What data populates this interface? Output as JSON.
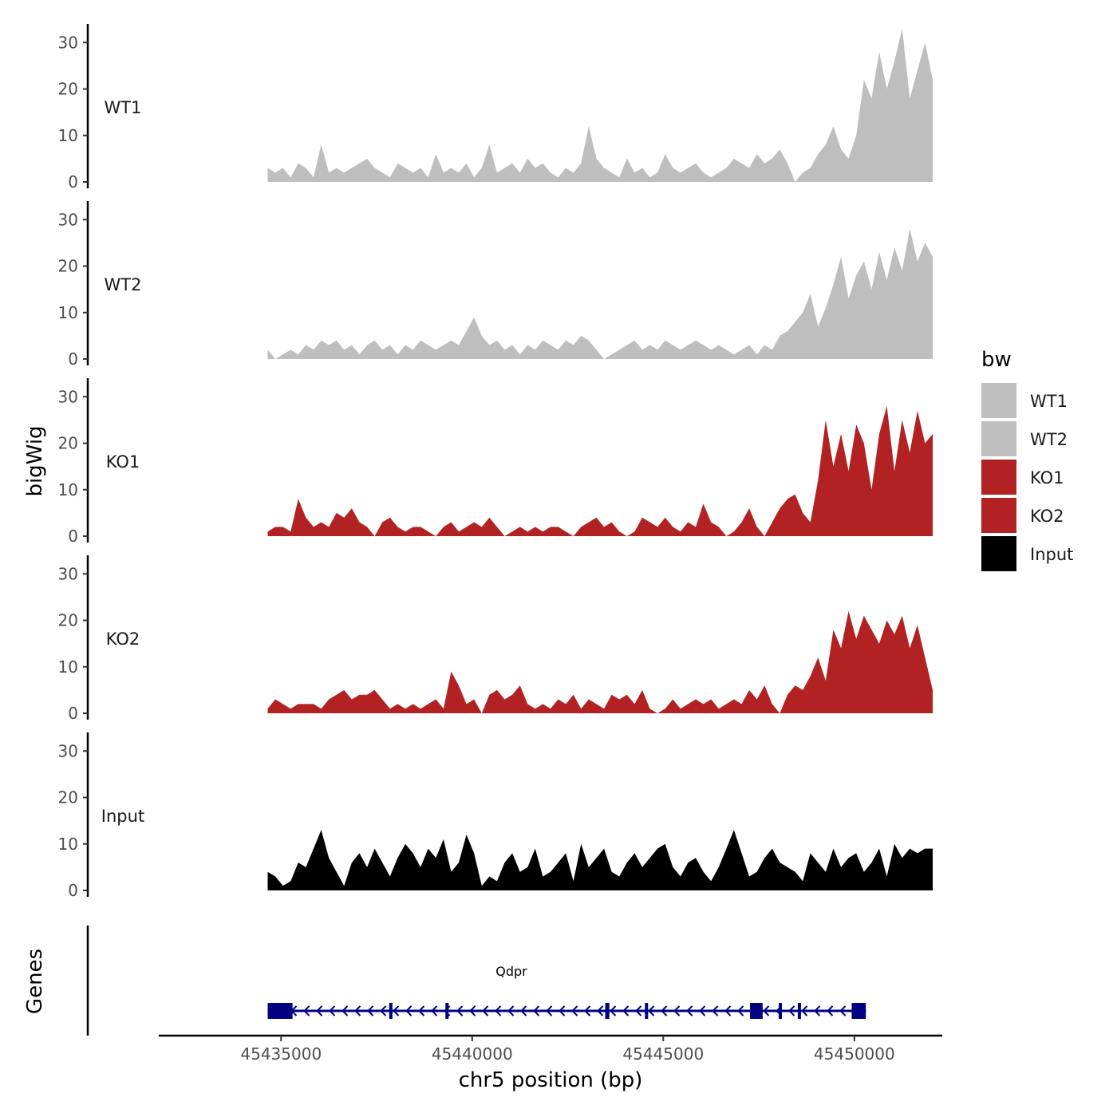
{
  "chart_data": {
    "type": "area",
    "ylabel": "bigWig",
    "xlabel": "chr5 position (bp)",
    "genes_label": "Genes",
    "xlim": [
      45431800,
      45452300
    ],
    "ylim": [
      0,
      34
    ],
    "y_ticks": [
      {
        "value": 0,
        "label": "0"
      },
      {
        "value": 10,
        "label": "10"
      },
      {
        "value": 20,
        "label": "20"
      },
      {
        "value": 30,
        "label": "30"
      }
    ],
    "x_ticks": [
      {
        "value": 45435000,
        "label": "45435000"
      },
      {
        "value": 45440000,
        "label": "45440000"
      },
      {
        "value": 45445000,
        "label": "45445000"
      },
      {
        "value": 45450000,
        "label": "45450000"
      }
    ],
    "series": [
      {
        "name": "WT1",
        "color": "#bebebe",
        "x": [
          45434650,
          45434850,
          45435050,
          45435250,
          45435450,
          45435650,
          45435850,
          45436050,
          45436250,
          45436450,
          45436650,
          45436850,
          45437050,
          45437250,
          45437450,
          45437650,
          45437850,
          45438050,
          45438250,
          45438450,
          45438650,
          45438850,
          45439050,
          45439250,
          45439450,
          45439650,
          45439850,
          45440050,
          45440250,
          45440450,
          45440650,
          45440850,
          45441050,
          45441250,
          45441450,
          45441650,
          45441850,
          45442050,
          45442250,
          45442450,
          45442650,
          45442850,
          45443050,
          45443250,
          45443450,
          45443650,
          45443850,
          45444050,
          45444250,
          45444450,
          45444650,
          45444850,
          45445050,
          45445250,
          45445450,
          45445650,
          45445850,
          45446050,
          45446250,
          45446450,
          45446650,
          45446850,
          45447050,
          45447250,
          45447450,
          45447650,
          45447850,
          45448050,
          45448250,
          45448450,
          45448650,
          45448850,
          45449050,
          45449250,
          45449450,
          45449650,
          45449850,
          45450050,
          45450250,
          45450450,
          45450650,
          45450850,
          45451050,
          45451250,
          45451450,
          45451650,
          45451850,
          45452050
        ],
        "values": [
          3,
          2,
          3,
          1,
          4,
          3,
          1,
          8,
          2,
          3,
          2,
          3,
          4,
          5,
          3,
          2,
          1,
          4,
          3,
          2,
          3,
          1,
          6,
          2,
          3,
          2,
          4,
          1,
          3,
          8,
          2,
          3,
          4,
          2,
          5,
          3,
          4,
          2,
          1,
          3,
          2,
          4,
          12,
          5,
          3,
          2,
          1,
          5,
          2,
          3,
          1,
          2,
          6,
          3,
          2,
          3,
          4,
          2,
          1,
          2,
          3,
          5,
          4,
          3,
          6,
          4,
          5,
          7,
          4,
          0,
          2,
          3,
          6,
          8,
          12,
          7,
          5,
          10,
          22,
          18,
          28,
          20,
          26,
          33,
          18,
          24,
          30,
          22
        ]
      },
      {
        "name": "WT2",
        "color": "#bebebe",
        "x": [
          45434650,
          45434850,
          45435050,
          45435250,
          45435450,
          45435650,
          45435850,
          45436050,
          45436250,
          45436450,
          45436650,
          45436850,
          45437050,
          45437250,
          45437450,
          45437650,
          45437850,
          45438050,
          45438250,
          45438450,
          45438650,
          45438850,
          45439050,
          45439250,
          45439450,
          45439650,
          45439850,
          45440050,
          45440250,
          45440450,
          45440650,
          45440850,
          45441050,
          45441250,
          45441450,
          45441650,
          45441850,
          45442050,
          45442250,
          45442450,
          45442650,
          45442850,
          45443050,
          45443250,
          45443450,
          45443650,
          45443850,
          45444050,
          45444250,
          45444450,
          45444650,
          45444850,
          45445050,
          45445250,
          45445450,
          45445650,
          45445850,
          45446050,
          45446250,
          45446450,
          45446650,
          45446850,
          45447050,
          45447250,
          45447450,
          45447650,
          45447850,
          45448050,
          45448250,
          45448450,
          45448650,
          45448850,
          45449050,
          45449250,
          45449450,
          45449650,
          45449850,
          45450050,
          45450250,
          45450450,
          45450650,
          45450850,
          45451050,
          45451250,
          45451450,
          45451650,
          45451850,
          45452050
        ],
        "values": [
          2,
          0,
          1,
          2,
          1,
          3,
          2,
          4,
          3,
          4,
          2,
          3,
          1,
          3,
          4,
          2,
          3,
          1,
          3,
          2,
          4,
          3,
          2,
          3,
          4,
          3,
          6,
          9,
          5,
          3,
          4,
          2,
          3,
          1,
          3,
          2,
          4,
          3,
          2,
          4,
          3,
          5,
          4,
          2,
          0,
          1,
          2,
          3,
          4,
          2,
          3,
          2,
          4,
          3,
          2,
          3,
          4,
          3,
          2,
          3,
          2,
          1,
          2,
          3,
          1,
          3,
          2,
          5,
          6,
          8,
          10,
          14,
          7,
          11,
          16,
          22,
          13,
          18,
          21,
          15,
          23,
          17,
          24,
          19,
          28,
          21,
          25,
          22
        ]
      },
      {
        "name": "KO1",
        "color": "#b22222",
        "x": [
          45434650,
          45434850,
          45435050,
          45435250,
          45435450,
          45435650,
          45435850,
          45436050,
          45436250,
          45436450,
          45436650,
          45436850,
          45437050,
          45437250,
          45437450,
          45437650,
          45437850,
          45438050,
          45438250,
          45438450,
          45438650,
          45438850,
          45439050,
          45439250,
          45439450,
          45439650,
          45439850,
          45440050,
          45440250,
          45440450,
          45440650,
          45440850,
          45441050,
          45441250,
          45441450,
          45441650,
          45441850,
          45442050,
          45442250,
          45442450,
          45442650,
          45442850,
          45443050,
          45443250,
          45443450,
          45443650,
          45443850,
          45444050,
          45444250,
          45444450,
          45444650,
          45444850,
          45445050,
          45445250,
          45445450,
          45445650,
          45445850,
          45446050,
          45446250,
          45446450,
          45446650,
          45446850,
          45447050,
          45447250,
          45447450,
          45447650,
          45447850,
          45448050,
          45448250,
          45448450,
          45448650,
          45448850,
          45449050,
          45449250,
          45449450,
          45449650,
          45449850,
          45450050,
          45450250,
          45450450,
          45450650,
          45450850,
          45451050,
          45451250,
          45451450,
          45451650,
          45451850,
          45452050
        ],
        "values": [
          1,
          2,
          2,
          1,
          8,
          4,
          2,
          3,
          2,
          5,
          4,
          6,
          3,
          2,
          0,
          3,
          4,
          2,
          1,
          2,
          2,
          1,
          0,
          2,
          3,
          1,
          2,
          3,
          2,
          4,
          2,
          0,
          1,
          2,
          1,
          2,
          1,
          2,
          2,
          1,
          0,
          2,
          3,
          4,
          2,
          3,
          1,
          0,
          1,
          4,
          3,
          2,
          4,
          2,
          1,
          3,
          2,
          7,
          3,
          2,
          0,
          1,
          3,
          6,
          2,
          0,
          3,
          6,
          8,
          9,
          5,
          3,
          12,
          25,
          15,
          22,
          14,
          24,
          20,
          10,
          22,
          28,
          14,
          25,
          18,
          27,
          20,
          22
        ]
      },
      {
        "name": "KO2",
        "color": "#b22222",
        "x": [
          45434650,
          45434850,
          45435050,
          45435250,
          45435450,
          45435650,
          45435850,
          45436050,
          45436250,
          45436450,
          45436650,
          45436850,
          45437050,
          45437250,
          45437450,
          45437650,
          45437850,
          45438050,
          45438250,
          45438450,
          45438650,
          45438850,
          45439050,
          45439250,
          45439450,
          45439650,
          45439850,
          45440050,
          45440250,
          45440450,
          45440650,
          45440850,
          45441050,
          45441250,
          45441450,
          45441650,
          45441850,
          45442050,
          45442250,
          45442450,
          45442650,
          45442850,
          45443050,
          45443250,
          45443450,
          45443650,
          45443850,
          45444050,
          45444250,
          45444450,
          45444650,
          45444850,
          45445050,
          45445250,
          45445450,
          45445650,
          45445850,
          45446050,
          45446250,
          45446450,
          45446650,
          45446850,
          45447050,
          45447250,
          45447450,
          45447650,
          45447850,
          45448050,
          45448250,
          45448450,
          45448650,
          45448850,
          45449050,
          45449250,
          45449450,
          45449650,
          45449850,
          45450050,
          45450250,
          45450450,
          45450650,
          45450850,
          45451050,
          45451250,
          45451450,
          45451650,
          45451850,
          45452050
        ],
        "values": [
          1,
          3,
          2,
          1,
          2,
          2,
          2,
          1,
          3,
          4,
          5,
          3,
          4,
          4,
          5,
          3,
          1,
          2,
          1,
          2,
          1,
          2,
          3,
          1,
          9,
          6,
          2,
          3,
          0,
          4,
          5,
          3,
          4,
          6,
          2,
          1,
          2,
          1,
          3,
          2,
          4,
          1,
          3,
          2,
          1,
          4,
          3,
          4,
          2,
          5,
          1,
          0,
          1,
          3,
          1,
          2,
          3,
          2,
          3,
          1,
          2,
          3,
          2,
          5,
          3,
          6,
          2,
          0,
          4,
          6,
          5,
          8,
          12,
          7,
          18,
          14,
          22,
          16,
          21,
          18,
          15,
          20,
          17,
          21,
          14,
          19,
          12,
          5
        ]
      },
      {
        "name": "Input",
        "color": "#000000",
        "x": [
          45434650,
          45434850,
          45435050,
          45435250,
          45435450,
          45435650,
          45435850,
          45436050,
          45436250,
          45436450,
          45436650,
          45436850,
          45437050,
          45437250,
          45437450,
          45437650,
          45437850,
          45438050,
          45438250,
          45438450,
          45438650,
          45438850,
          45439050,
          45439250,
          45439450,
          45439650,
          45439850,
          45440050,
          45440250,
          45440450,
          45440650,
          45440850,
          45441050,
          45441250,
          45441450,
          45441650,
          45441850,
          45442050,
          45442250,
          45442450,
          45442650,
          45442850,
          45443050,
          45443250,
          45443450,
          45443650,
          45443850,
          45444050,
          45444250,
          45444450,
          45444650,
          45444850,
          45445050,
          45445250,
          45445450,
          45445650,
          45445850,
          45446050,
          45446250,
          45446450,
          45446650,
          45446850,
          45447050,
          45447250,
          45447450,
          45447650,
          45447850,
          45448050,
          45448250,
          45448450,
          45448650,
          45448850,
          45449050,
          45449250,
          45449450,
          45449650,
          45449850,
          45450050,
          45450250,
          45450450,
          45450650,
          45450850,
          45451050,
          45451250,
          45451450,
          45451650,
          45451850,
          45452050
        ],
        "values": [
          4,
          3,
          1,
          2,
          6,
          5,
          9,
          13,
          7,
          4,
          1,
          6,
          8,
          5,
          9,
          6,
          3,
          7,
          10,
          8,
          5,
          9,
          7,
          11,
          4,
          6,
          12,
          8,
          1,
          3,
          2,
          6,
          8,
          4,
          5,
          9,
          3,
          4,
          6,
          8,
          2,
          10,
          5,
          7,
          9,
          4,
          3,
          6,
          8,
          5,
          7,
          9,
          10,
          5,
          3,
          6,
          7,
          4,
          2,
          5,
          9,
          13,
          8,
          3,
          4,
          7,
          9,
          6,
          5,
          4,
          2,
          8,
          6,
          4,
          9,
          5,
          7,
          8,
          4,
          6,
          9,
          3,
          10,
          7,
          9,
          8,
          9,
          9
        ]
      }
    ],
    "gene": {
      "name": "Qdpr",
      "color": "#000080",
      "start": 45434650,
      "end": 45450300,
      "exons": [
        [
          45434650,
          45435300
        ],
        [
          45437830,
          45437900
        ],
        [
          45439300,
          45439370
        ],
        [
          45443480,
          45443590
        ],
        [
          45444520,
          45444590
        ],
        [
          45447270,
          45447600
        ],
        [
          45448020,
          45448070
        ],
        [
          45448520,
          45448570
        ],
        [
          45449930,
          45450300
        ]
      ]
    },
    "legend": {
      "title": "bw",
      "position": "right",
      "entries": [
        {
          "label": "WT1",
          "color": "#bebebe"
        },
        {
          "label": "WT2",
          "color": "#bebebe"
        },
        {
          "label": "KO1",
          "color": "#b22222"
        },
        {
          "label": "KO2",
          "color": "#b22222"
        },
        {
          "label": "Input",
          "color": "#000000"
        }
      ]
    }
  }
}
